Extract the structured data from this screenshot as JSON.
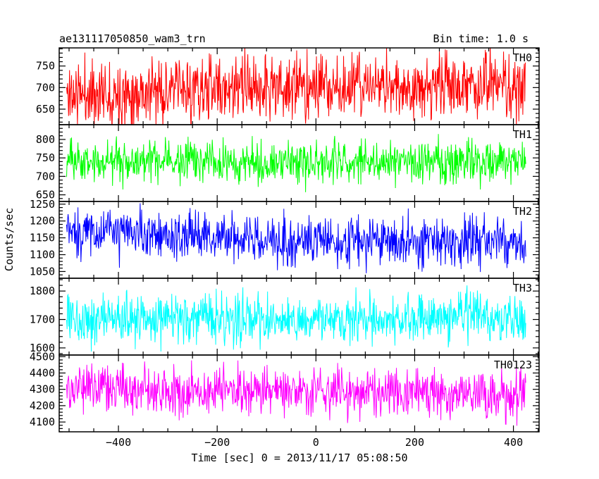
{
  "chart_data": {
    "type": "line",
    "title_left": "ae131117050850_wam3_trn",
    "title_right": "Bin time: 1.0 s",
    "xlabel": "Time [sec] 0 = 2013/11/17 05:08:50",
    "ylabel": "Counts/sec",
    "xlim": [
      -520,
      452
    ],
    "x_data_range": [
      -505,
      425
    ],
    "x_ticks": [
      -400,
      -200,
      0,
      200,
      400
    ],
    "x_tick_labels": [
      "−400",
      "−200",
      "0",
      "200",
      "400"
    ],
    "x_minor_step": 50,
    "bin_seconds": 1.0,
    "panels": [
      {
        "name": "TH0",
        "color": "#ff0000",
        "ylim": [
          614,
          792
        ],
        "y_ticks": [
          650,
          700,
          750
        ],
        "y_tick_labels": [
          "650",
          "700",
          "750"
        ],
        "y_minor_step": 10,
        "baseline": [
          [
            -505,
            685
          ],
          [
            -100,
            700
          ],
          [
            425,
            705
          ]
        ],
        "noise_sd": 38,
        "seed": 11
      },
      {
        "name": "TH1",
        "color": "#00ff00",
        "ylim": [
          632,
          840
        ],
        "y_ticks": [
          650,
          700,
          750,
          800
        ],
        "y_tick_labels": [
          "650",
          "700",
          "750",
          "800"
        ],
        "y_minor_step": 10,
        "baseline": [
          [
            -505,
            742
          ],
          [
            0,
            740
          ],
          [
            425,
            738
          ]
        ],
        "noise_sd": 28,
        "seed": 23
      },
      {
        "name": "TH2",
        "color": "#0000ff",
        "ylim": [
          1030,
          1258
        ],
        "y_ticks": [
          1050,
          1100,
          1150,
          1200,
          1250
        ],
        "y_tick_labels": [
          "1050",
          "1100",
          "1150",
          "1200",
          "1250"
        ],
        "y_minor_step": 10,
        "baseline": [
          [
            -505,
            1172
          ],
          [
            -200,
            1150
          ],
          [
            100,
            1140
          ],
          [
            425,
            1135
          ]
        ],
        "noise_sd": 36,
        "seed": 37
      },
      {
        "name": "TH3",
        "color": "#00ffff",
        "ylim": [
          1575,
          1845
        ],
        "y_ticks": [
          1600,
          1700,
          1800
        ],
        "y_tick_labels": [
          "1600",
          "1700",
          "1800"
        ],
        "y_minor_step": 20,
        "baseline": [
          [
            -505,
            1705
          ],
          [
            0,
            1700
          ],
          [
            425,
            1700
          ]
        ],
        "noise_sd": 42,
        "seed": 53
      },
      {
        "name": "TH0123",
        "color": "#ff00ff",
        "ylim": [
          4040,
          4510
        ],
        "y_ticks": [
          4100,
          4200,
          4300,
          4400,
          4500
        ],
        "y_tick_labels": [
          "4100",
          "4200",
          "4300",
          "4400",
          "4500"
        ],
        "y_minor_step": 20,
        "baseline": [
          [
            -505,
            4305
          ],
          [
            0,
            4290
          ],
          [
            425,
            4260
          ]
        ],
        "noise_sd": 72,
        "seed": 71
      }
    ]
  }
}
